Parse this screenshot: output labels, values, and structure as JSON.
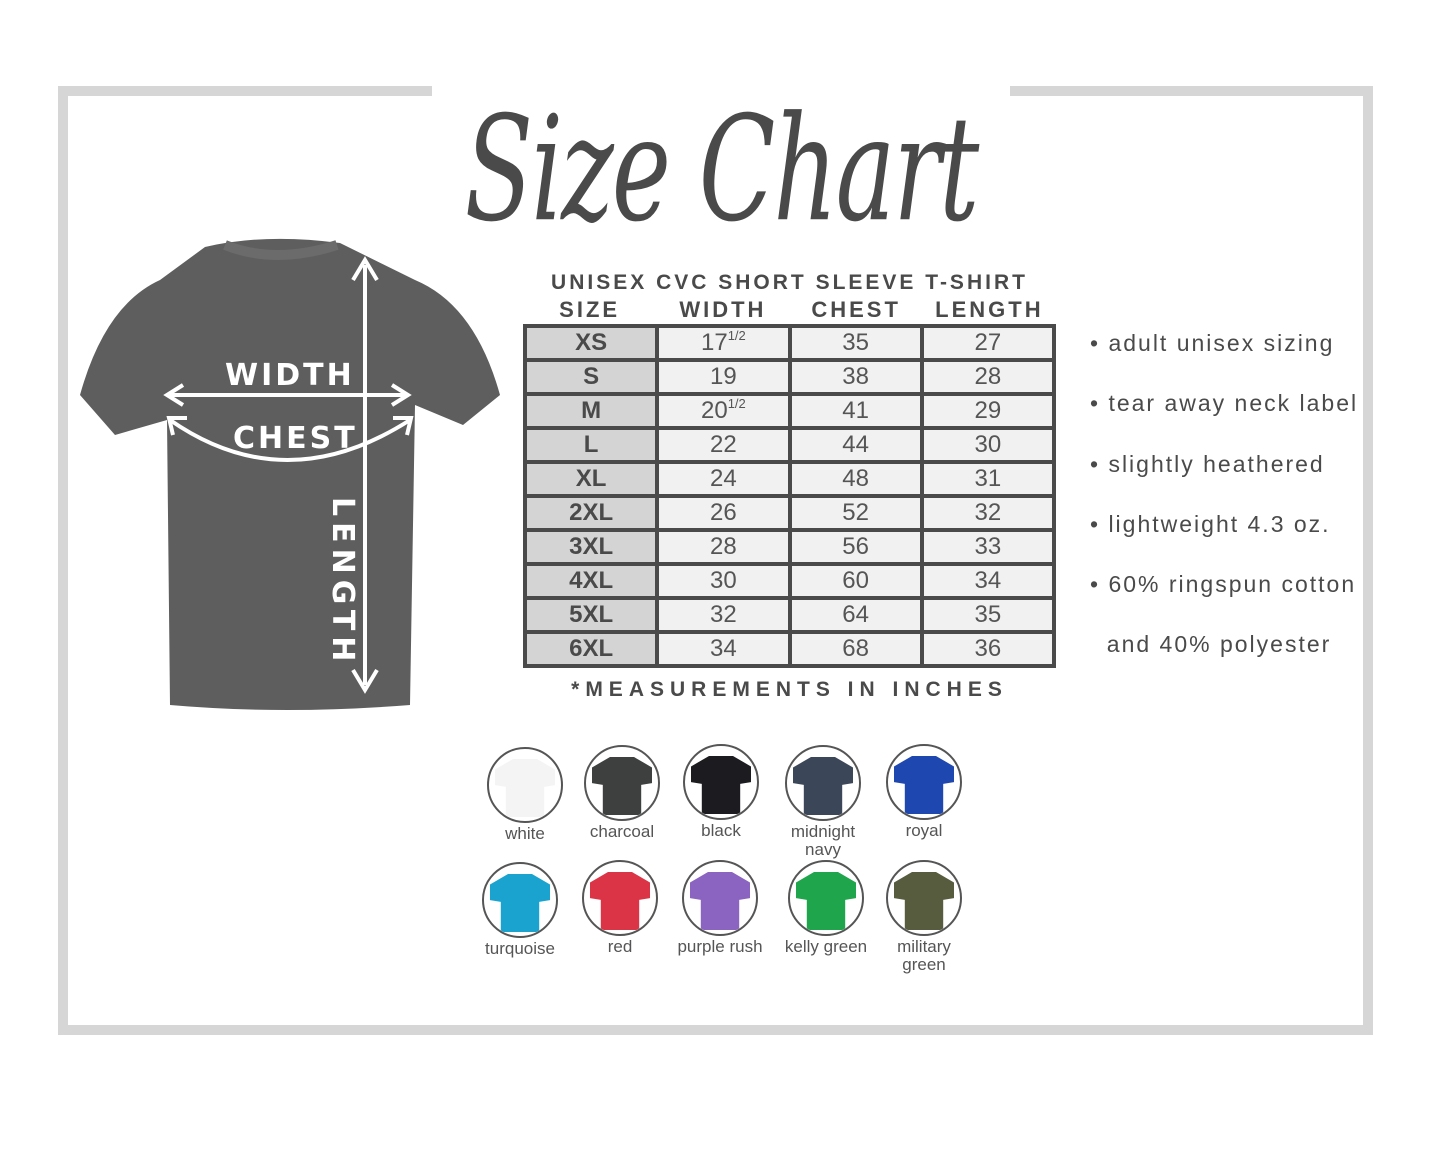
{
  "title": "Size Chart",
  "diagram": {
    "width": "WIDTH",
    "chest": "CHEST",
    "length": "LENGTH",
    "shirt_color": "#5e5e5e"
  },
  "table": {
    "title": "UNISEX CVC SHORT SLEEVE T-SHIRT",
    "headers": [
      "SIZE",
      "WIDTH",
      "CHEST",
      "LENGTH"
    ],
    "rows": [
      [
        "XS",
        "17",
        "35",
        "27",
        "1/2"
      ],
      [
        "S",
        "19",
        "38",
        "28",
        ""
      ],
      [
        "M",
        "20",
        "41",
        "29",
        "1/2"
      ],
      [
        "L",
        "22",
        "44",
        "30",
        ""
      ],
      [
        "XL",
        "24",
        "48",
        "31",
        ""
      ],
      [
        "2XL",
        "26",
        "52",
        "32",
        ""
      ],
      [
        "3XL",
        "28",
        "56",
        "33",
        ""
      ],
      [
        "4XL",
        "30",
        "60",
        "34",
        ""
      ],
      [
        "5XL",
        "32",
        "64",
        "35",
        ""
      ],
      [
        "6XL",
        "34",
        "68",
        "36",
        ""
      ]
    ],
    "note": "*MEASUREMENTS IN INCHES"
  },
  "features": [
    "• adult unisex sizing",
    "• tear away neck label",
    "• slightly heathered",
    "• lightweight 4.3 oz.",
    "• 60% ringspun cotton",
    "  and 40% polyester"
  ],
  "colors": [
    {
      "label": "white",
      "hex": "#f4f4f4"
    },
    {
      "label": "charcoal",
      "hex": "#3e403f"
    },
    {
      "label": "black",
      "hex": "#1c1b1f"
    },
    {
      "label": "midnight navy",
      "hex": "#3b4759"
    },
    {
      "label": "royal",
      "hex": "#1f47b0"
    },
    {
      "label": "turquoise",
      "hex": "#1aa3cf"
    },
    {
      "label": "red",
      "hex": "#dc3447"
    },
    {
      "label": "purple rush",
      "hex": "#8b63c0"
    },
    {
      "label": "kelly green",
      "hex": "#1fa54c"
    },
    {
      "label": "military green",
      "hex": "#565c3d"
    }
  ]
}
